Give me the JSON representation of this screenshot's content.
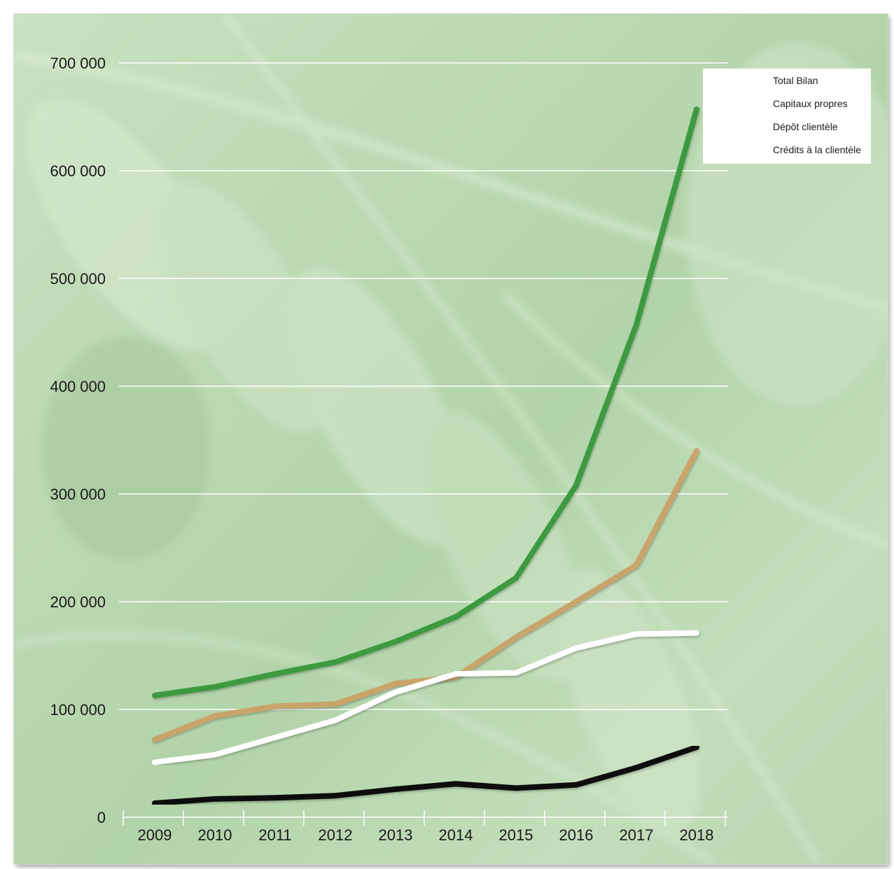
{
  "chart_data": {
    "type": "line",
    "title": "",
    "xlabel": "",
    "ylabel": "",
    "categories": [
      "2009",
      "2010",
      "2011",
      "2012",
      "2013",
      "2014",
      "2015",
      "2016",
      "2017",
      "2018"
    ],
    "ylim": [
      0,
      700000
    ],
    "yticks": [
      0,
      100000,
      200000,
      300000,
      400000,
      500000,
      600000,
      700000
    ],
    "ytick_labels": [
      "0",
      "100 000",
      "200 000",
      "300 000",
      "400 000",
      "500 000",
      "600 000",
      "700 000"
    ],
    "grid": true,
    "legend_position": "top-right",
    "series": [
      {
        "name": "Total Bilan",
        "color": "#3d9a3f",
        "values": [
          113000,
          121000,
          133000,
          144000,
          163000,
          186000,
          222000,
          308000,
          457000,
          657000
        ]
      },
      {
        "name": "Capitaux propres",
        "color": "#111111",
        "values": [
          13000,
          17000,
          18000,
          20000,
          26000,
          31000,
          27000,
          30000,
          46000,
          65000
        ]
      },
      {
        "name": "Dépôt clientèle",
        "color": "#c9a46a",
        "values": [
          72000,
          94000,
          103000,
          105000,
          124000,
          130000,
          167000,
          200000,
          234000,
          340000
        ]
      },
      {
        "name": "Crédits à la clientèle",
        "color": "#ffffff",
        "values": [
          51000,
          58000,
          74000,
          90000,
          116000,
          133000,
          134000,
          157000,
          170000,
          171000
        ]
      }
    ]
  }
}
